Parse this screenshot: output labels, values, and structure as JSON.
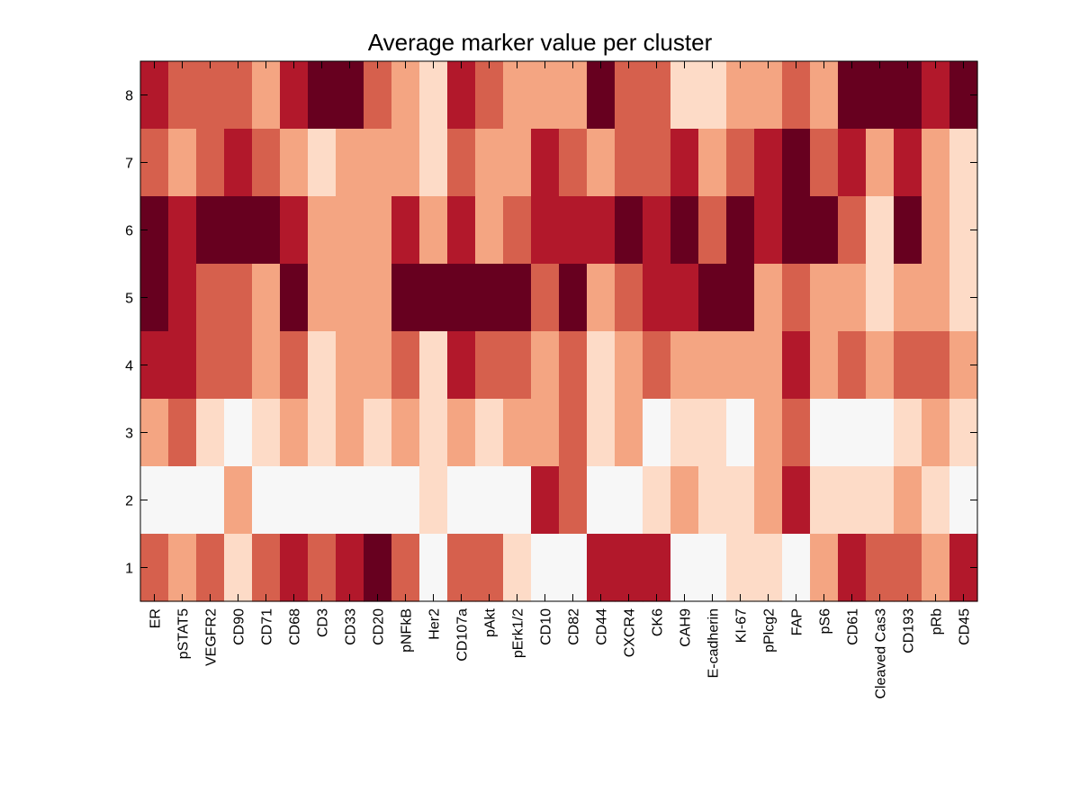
{
  "chart_data": {
    "type": "heatmap",
    "title": "Average marker value per cluster",
    "xlabel": "",
    "ylabel": "",
    "columns": [
      "ER",
      "pSTAT5",
      "VEGFR2",
      "CD90",
      "CD71",
      "CD68",
      "CD3",
      "CD33",
      "CD20",
      "pNFkB",
      "Her2",
      "CD107a",
      "pAkt",
      "pErk1/2",
      "CD10",
      "CD82",
      "CD44",
      "CXCR4",
      "CK6",
      "CAH9",
      "E-cadherin",
      "KI-67",
      "pPlcg2",
      "FAP",
      "pS6",
      "CD61",
      "Cleaved Cas3",
      "CD193",
      "pRb",
      "CD45"
    ],
    "rows": [
      "8",
      "7",
      "6",
      "5",
      "4",
      "3",
      "2",
      "1"
    ],
    "values": [
      [
        5,
        4,
        4,
        4,
        3,
        5,
        6,
        6,
        4,
        3,
        2,
        5,
        4,
        3,
        3,
        3,
        6,
        4,
        4,
        2,
        2,
        3,
        3,
        4,
        3,
        6,
        6,
        6,
        5,
        6
      ],
      [
        4,
        3,
        4,
        5,
        4,
        3,
        2,
        3,
        3,
        3,
        2,
        4,
        3,
        3,
        5,
        4,
        3,
        4,
        4,
        5,
        3,
        4,
        5,
        6,
        4,
        5,
        3,
        5,
        3,
        2
      ],
      [
        6,
        5,
        6,
        6,
        6,
        5,
        3,
        3,
        3,
        5,
        3,
        5,
        3,
        4,
        5,
        5,
        5,
        6,
        5,
        6,
        4,
        6,
        5,
        6,
        6,
        4,
        2,
        6,
        3,
        2
      ],
      [
        6,
        5,
        4,
        4,
        3,
        6,
        3,
        3,
        3,
        6,
        6,
        6,
        6,
        6,
        4,
        6,
        3,
        4,
        5,
        5,
        6,
        6,
        3,
        4,
        3,
        3,
        2,
        3,
        3,
        2
      ],
      [
        5,
        5,
        4,
        4,
        3,
        4,
        2,
        3,
        3,
        4,
        2,
        5,
        4,
        4,
        3,
        4,
        2,
        3,
        4,
        3,
        3,
        3,
        3,
        5,
        3,
        4,
        3,
        4,
        4,
        3
      ],
      [
        3,
        4,
        2,
        1,
        2,
        3,
        2,
        3,
        2,
        3,
        2,
        3,
        2,
        3,
        3,
        4,
        2,
        3,
        1,
        2,
        2,
        1,
        3,
        4,
        1,
        1,
        1,
        2,
        3,
        2
      ],
      [
        1,
        1,
        1,
        3,
        1,
        1,
        1,
        1,
        1,
        1,
        2,
        1,
        1,
        1,
        5,
        4,
        1,
        1,
        2,
        3,
        2,
        2,
        3,
        5,
        2,
        2,
        2,
        3,
        2,
        1
      ],
      [
        4,
        3,
        4,
        2,
        4,
        5,
        4,
        5,
        6,
        4,
        1,
        4,
        4,
        2,
        1,
        1,
        5,
        5,
        5,
        1,
        1,
        2,
        2,
        1,
        3,
        5,
        4,
        4,
        3,
        5
      ]
    ],
    "color_levels": {
      "1": "#f7f7f7",
      "2": "#fddbc7",
      "3": "#f4a582",
      "4": "#d6604d",
      "5": "#b2182b",
      "6": "#67001f"
    },
    "grid": false,
    "legend": "none"
  }
}
